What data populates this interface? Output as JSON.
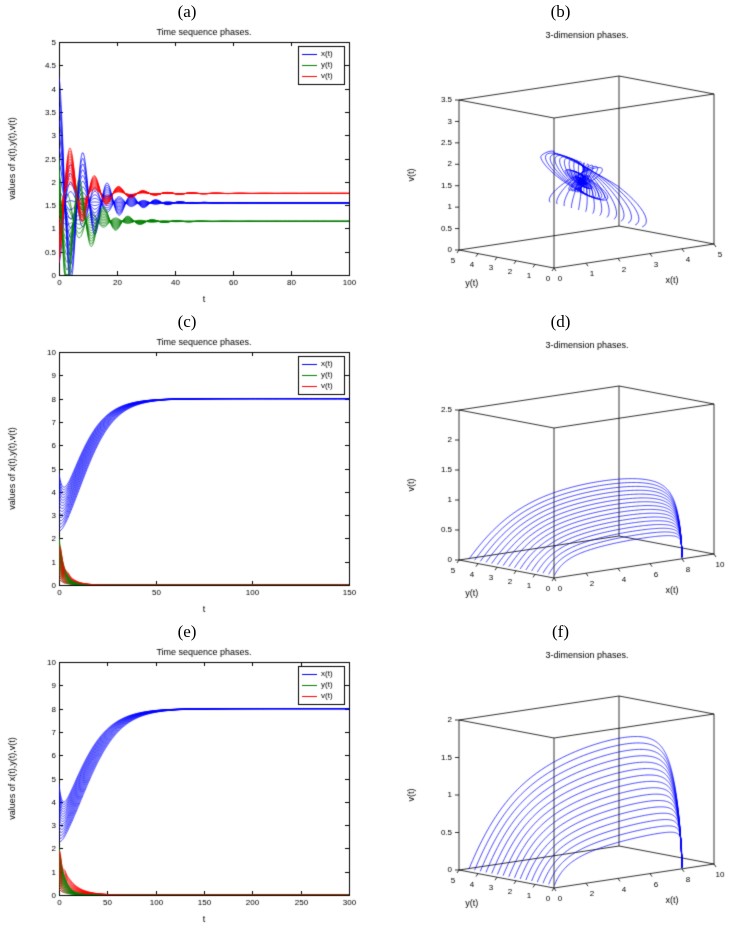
{
  "palette": {
    "x": "#0000ff",
    "y": "#008000",
    "v": "#ff0000",
    "axis": "#000000",
    "background": "#ffffff"
  },
  "chart_data": [
    {
      "id": "a",
      "label": "(a)",
      "type": "line",
      "title": "Time sequence phases.",
      "xlabel": "t",
      "ylabel": "values of x(t),y(t),v(t)",
      "xlim": [
        0,
        100
      ],
      "ylim": [
        0,
        5
      ],
      "xticks": [
        0,
        20,
        40,
        60,
        80,
        100
      ],
      "yticks": [
        0,
        0.5,
        1,
        1.5,
        2,
        2.5,
        3,
        3.5,
        4,
        4.5,
        5
      ],
      "legend": [
        {
          "label": "x(t)",
          "color": "x"
        },
        {
          "label": "y(t)",
          "color": "y"
        },
        {
          "label": "v(t)",
          "color": "v"
        }
      ],
      "steady_state": {
        "x": 1.55,
        "y": 1.15,
        "v": 1.75
      },
      "series_model": {
        "kind": "osc",
        "n": 14,
        "t_end": 100,
        "samples": 400,
        "series": [
          {
            "color": "x",
            "eq": 1.55,
            "a0": -1.3,
            "a1": 2.7,
            "tau": 9,
            "w": 0.75,
            "phase": 0
          },
          {
            "color": "y",
            "eq": 1.15,
            "a0": -0.85,
            "a1": 2.2,
            "tau": 8,
            "w": 0.75,
            "phase": 0.9
          },
          {
            "color": "v",
            "eq": 1.75,
            "a0": 0.3,
            "a1": 1.5,
            "tau": 9,
            "w": 0.75,
            "phase": 3.3
          }
        ]
      }
    },
    {
      "id": "b",
      "label": "(b)",
      "type": "line3d",
      "title": "3-dimension phases.",
      "xlabel": "x(t)",
      "ylabel": "y(t)",
      "zlabel": "v(t)",
      "xlim": [
        0,
        5
      ],
      "ylim": [
        0,
        5
      ],
      "zlim": [
        0,
        3.5
      ],
      "xticks": [
        0,
        1,
        2,
        3,
        4,
        5
      ],
      "yticks": [
        0,
        1,
        2,
        3,
        4,
        5
      ],
      "zticks": [
        0,
        0.5,
        1,
        1.5,
        2,
        2.5,
        3,
        3.5
      ],
      "steady_state": {
        "x": 1.55,
        "y": 1.15,
        "v": 1.75
      },
      "series_model": {
        "kind": "spiral3d",
        "n": 14,
        "t_end": 60,
        "samples": 400,
        "series": [
          {
            "color": "x",
            "eq": 1.55,
            "a0": -1.3,
            "a1": 2.7,
            "tau": 9,
            "w": 0.75,
            "phase": 0
          },
          {
            "color": "y",
            "eq": 1.15,
            "a0": -0.85,
            "a1": 2.2,
            "tau": 8,
            "w": 0.75,
            "phase": 0.9
          },
          {
            "color": "v",
            "eq": 1.75,
            "a0": 0.3,
            "a1": 1.5,
            "tau": 9,
            "w": 0.75,
            "phase": 3.3
          }
        ]
      }
    },
    {
      "id": "c",
      "label": "(c)",
      "type": "line",
      "title": "Time sequence phases.",
      "xlabel": "t",
      "ylabel": "values of x(t),y(t),v(t)",
      "xlim": [
        0,
        150
      ],
      "ylim": [
        0,
        10
      ],
      "xticks": [
        0,
        50,
        100,
        150
      ],
      "yticks": [
        0,
        1,
        2,
        3,
        4,
        5,
        6,
        7,
        8,
        9,
        10
      ],
      "legend": [
        {
          "label": "x(t)",
          "color": "x"
        },
        {
          "label": "y(t)",
          "color": "y"
        },
        {
          "label": "v(t)",
          "color": "v"
        }
      ],
      "steady_state": {
        "x": 8,
        "y": 0,
        "v": 0
      },
      "series_model": {
        "kind": "sig",
        "n": 16,
        "t_end": 150,
        "samples": 500,
        "x": {
          "eq": 8,
          "r": 0.11,
          "L0a": 2.0,
          "L0b": 3.2,
          "da": 0.3,
          "db": 1.6,
          "dtau": 2.0
        },
        "y": {
          "y0a": 0.25,
          "y0b": 2.05,
          "tau": 2.8
        },
        "v": {
          "v0a": 0.2,
          "v0b": 1.6,
          "tau": 4.0,
          "osc": 0.3,
          "ow": 1.6
        }
      }
    },
    {
      "id": "d",
      "label": "(d)",
      "type": "line3d",
      "title": "3-dimension phases.",
      "xlabel": "x(t)",
      "ylabel": "y(t)",
      "zlabel": "v(t)",
      "xlim": [
        0,
        10
      ],
      "ylim": [
        0,
        5
      ],
      "zlim": [
        0,
        2.5
      ],
      "xticks": [
        0,
        2,
        4,
        6,
        8,
        10
      ],
      "yticks": [
        0,
        1,
        2,
        3,
        4,
        5
      ],
      "zticks": [
        0,
        0.5,
        1,
        1.5,
        2,
        2.5
      ],
      "steady_state": {
        "x": 8,
        "y": 0,
        "v": 0
      },
      "series_model": {
        "kind": "sheet3d",
        "n": 16,
        "t_end": 150,
        "samples": 500,
        "x": {
          "eq": 8,
          "r": 0.15,
          "x0": 0.5
        },
        "y": {
          "y0a": 0.4,
          "y0b": 4.9,
          "tau": 20
        },
        "v": {
          "T": 25,
          "p_base": 0.35,
          "p_scale": 0.2
        }
      }
    },
    {
      "id": "e",
      "label": "(e)",
      "type": "line",
      "title": "Time sequence phases.",
      "xlabel": "t",
      "ylabel": "values of x(t),y(t),v(t)",
      "xlim": [
        0,
        300
      ],
      "ylim": [
        0,
        10
      ],
      "xticks": [
        0,
        50,
        100,
        150,
        200,
        250,
        300
      ],
      "yticks": [
        0,
        1,
        2,
        3,
        4,
        5,
        6,
        7,
        8,
        9,
        10
      ],
      "legend": [
        {
          "label": "x(t)",
          "color": "x"
        },
        {
          "label": "y(t)",
          "color": "y"
        },
        {
          "label": "v(t)",
          "color": "v"
        }
      ],
      "steady_state": {
        "x": 8,
        "y": 0,
        "v": 0
      },
      "series_model": {
        "kind": "sig",
        "n": 16,
        "t_end": 300,
        "samples": 600,
        "x": {
          "eq": 8,
          "r": 0.05,
          "L0a": 2.0,
          "L0b": 3.2,
          "da": 0.3,
          "db": 1.6,
          "dtau": 3.0
        },
        "y": {
          "y0a": 0.25,
          "y0b": 2.05,
          "tau": 6.0
        },
        "v": {
          "v0a": 0.2,
          "v0b": 1.7,
          "tau": 12.0,
          "osc": 0.3,
          "ow": 1.2
        }
      }
    },
    {
      "id": "f",
      "label": "(f)",
      "type": "line3d",
      "title": "3-dimension phases.",
      "xlabel": "x(t)",
      "ylabel": "y(t)",
      "zlabel": "v(t)",
      "xlim": [
        0,
        10
      ],
      "ylim": [
        0,
        5
      ],
      "zlim": [
        0,
        2
      ],
      "xticks": [
        0,
        2,
        4,
        6,
        8,
        10
      ],
      "yticks": [
        0,
        1,
        2,
        3,
        4,
        5
      ],
      "zticks": [
        0,
        0.5,
        1,
        1.5,
        2
      ],
      "steady_state": {
        "x": 8,
        "y": 0,
        "v": 0
      },
      "series_model": {
        "kind": "sheet3d",
        "n": 16,
        "t_end": 300,
        "samples": 500,
        "x": {
          "eq": 8,
          "r": 0.1,
          "x0": 0.5
        },
        "y": {
          "y0a": 0.4,
          "y0b": 4.9,
          "tau": 40
        },
        "v": {
          "T": 45,
          "p_base": 0.4,
          "p_scale": 0.27
        }
      }
    }
  ]
}
